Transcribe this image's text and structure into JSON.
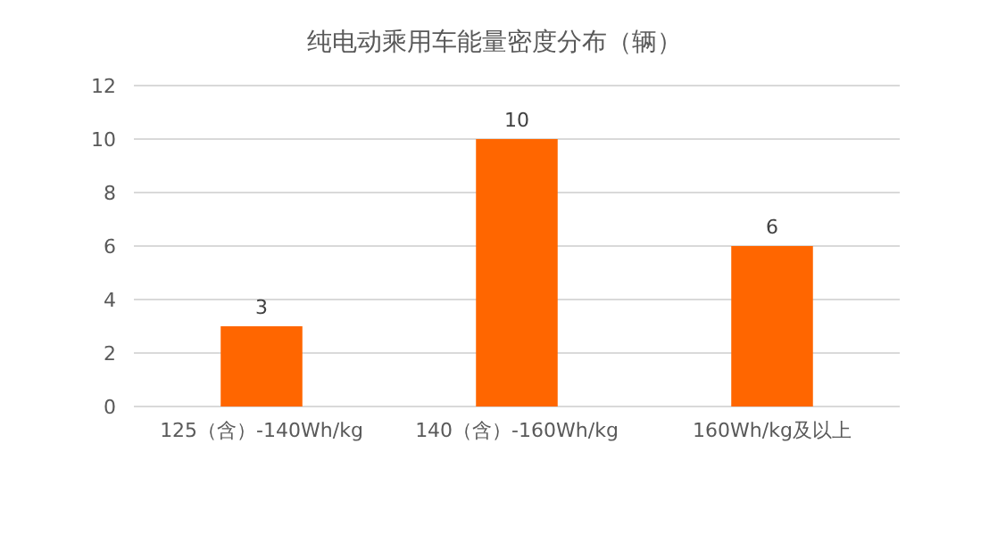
{
  "chart_data": {
    "type": "bar",
    "title": "纯电动乘用车能量密度分布（辆）",
    "categories": [
      "125（含）-140Wh/kg",
      "140（含）-160Wh/kg",
      "160Wh/kg及以上"
    ],
    "values": [
      3,
      10,
      6
    ],
    "color": "#ff6600",
    "ylim": [
      0,
      12
    ],
    "yticks": [
      0,
      2,
      4,
      6,
      8,
      10,
      12
    ],
    "grid": "y",
    "data_labels": true
  }
}
